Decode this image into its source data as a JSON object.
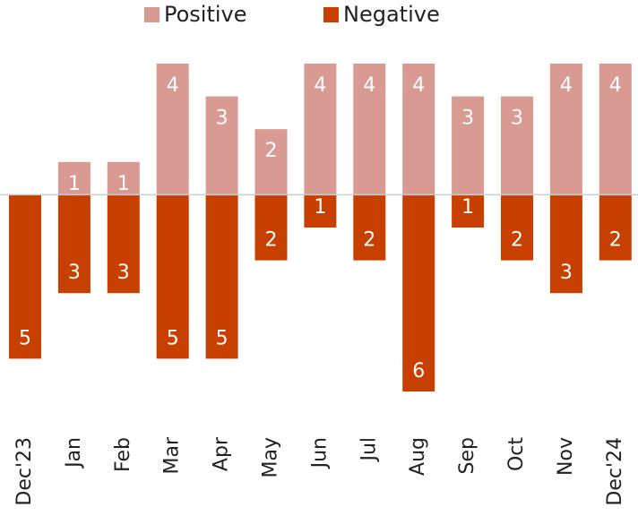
{
  "chart_data": {
    "type": "bar",
    "categories": [
      "Dec'23",
      "Jan",
      "Feb",
      "Mar",
      "Apr",
      "May",
      "Jun",
      "Jul",
      "Aug",
      "Sep",
      "Oct",
      "Nov",
      "Dec'24"
    ],
    "series": [
      {
        "name": "Positive",
        "color": "#d99a94",
        "values": [
          null,
          1,
          1,
          4,
          3,
          2,
          4,
          4,
          4,
          3,
          3,
          4,
          4
        ],
        "value_labels": [
          null,
          "1",
          "1",
          "4",
          "3",
          "2",
          "4",
          "4",
          "4",
          "3",
          "3",
          "4",
          "4"
        ]
      },
      {
        "name": "Negative",
        "color": "#c84000",
        "values": [
          -5,
          -3,
          -3,
          -5,
          -5,
          -2,
          -1,
          -2,
          -6,
          -1,
          -2,
          -3,
          -2
        ],
        "value_labels": [
          "5",
          "3",
          "3",
          "5",
          "5",
          "2",
          "1",
          "2",
          "6",
          "1",
          "2",
          "3",
          "2"
        ]
      }
    ],
    "ylim": [
      -6,
      4
    ]
  }
}
